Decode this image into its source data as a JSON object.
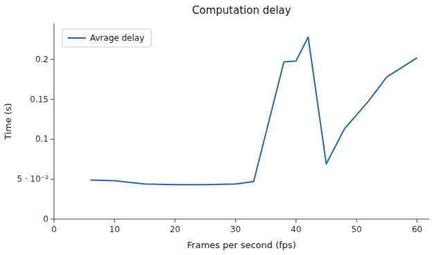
{
  "chart_data": {
    "type": "line",
    "title": "Computation delay",
    "x_label": "Frames per second (fps)",
    "y_label": "Time (s)",
    "x": [
      6,
      10,
      15,
      20,
      25,
      30,
      33,
      38,
      40,
      42,
      45,
      48,
      52,
      55,
      60
    ],
    "series": [
      {
        "name": "Avrage delay",
        "color": "#1f6bbf",
        "values": [
          0.049,
          0.048,
          0.044,
          0.043,
          0.043,
          0.044,
          0.047,
          0.197,
          0.198,
          0.228,
          0.069,
          0.113,
          0.148,
          0.178,
          0.202
        ]
      }
    ],
    "xlim": [
      0,
      62
    ],
    "ylim": [
      0,
      0.245
    ],
    "xticks": [
      0,
      10,
      20,
      30,
      40,
      50,
      60
    ],
    "yticks": [
      0,
      {
        "value": 0.05,
        "label": "5 · 10⁻²"
      },
      0.1,
      0.15,
      0.2
    ],
    "grid": false,
    "legend": "upper-left"
  }
}
